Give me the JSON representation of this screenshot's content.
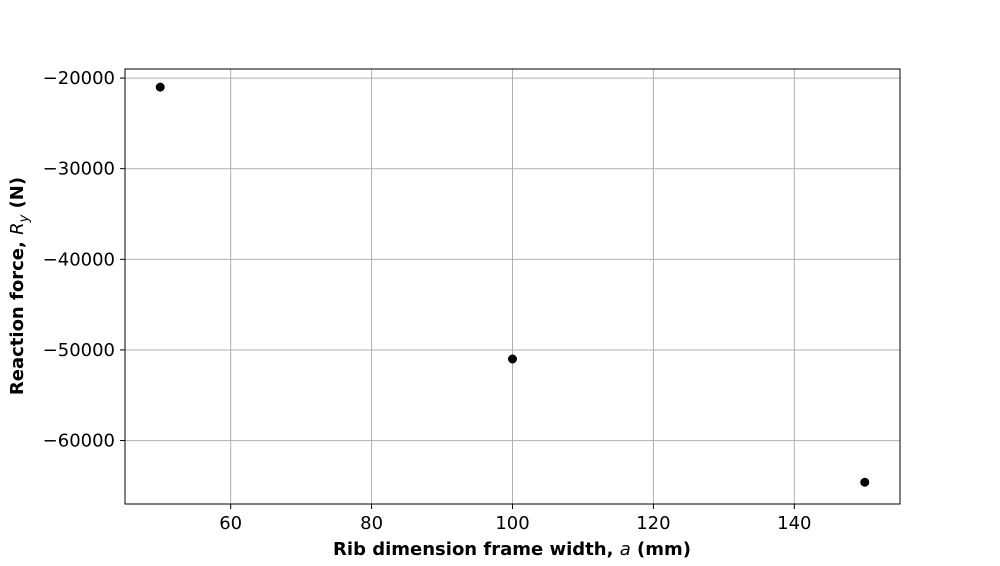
{
  "chart_data": {
    "type": "scatter",
    "xlabel_prefix": "Rib dimension frame width, ",
    "xlabel_symbol": "a",
    "xlabel_suffix": " (mm)",
    "ylabel_prefix": "Reaction force, ",
    "ylabel_symbol": "R",
    "ylabel_subscript": "y",
    "ylabel_suffix": " (N)",
    "xlim": [
      45,
      155
    ],
    "ylim": [
      -67000,
      -19000
    ],
    "xticks": [
      60,
      80,
      100,
      120,
      140
    ],
    "yticks": [
      -60000,
      -50000,
      -40000,
      -30000,
      -20000
    ],
    "xtick_labels": [
      "60",
      "80",
      "100",
      "120",
      "140"
    ],
    "ytick_labels": [
      "−60000",
      "−50000",
      "−40000",
      "−30000",
      "−20000"
    ],
    "grid": true,
    "marker_color": "#000000",
    "series": [
      {
        "x": [
          50,
          100,
          150
        ],
        "y": [
          -21000,
          -51000,
          -64600
        ]
      }
    ]
  }
}
